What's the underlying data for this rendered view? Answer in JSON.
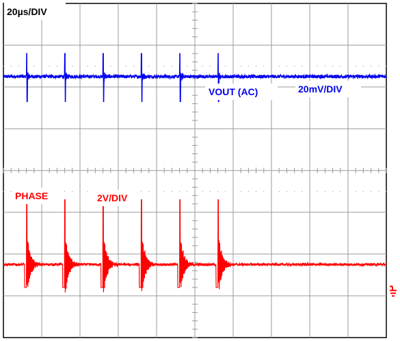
{
  "chart_data": {
    "type": "line",
    "title": "",
    "timebase_label": "20µs/DIV",
    "grid": true,
    "divisions": {
      "horizontal": 10,
      "vertical": 8
    },
    "x_range_us": [
      0,
      200
    ],
    "switching_period_us": 20,
    "edge_times_us": [
      12,
      32,
      52,
      72,
      92,
      112
    ],
    "series": [
      {
        "name": "VOUT (AC)",
        "scale_label": "20mV/DIV",
        "color": "#0000ee",
        "baseline_div": 2.25,
        "spike_up_div": 0.55,
        "spike_down_div": -0.6,
        "noise_div": 0.04
      },
      {
        "name": "PHASE",
        "scale_label": "2V/DIV",
        "color": "#ff0000",
        "baseline_div": -2.25,
        "spike_up_div": 1.55,
        "ring_down_div": -0.55,
        "noise_div": 0.03
      }
    ],
    "ground_marker_color": "#ff0000",
    "gridline_color": "#999999"
  }
}
